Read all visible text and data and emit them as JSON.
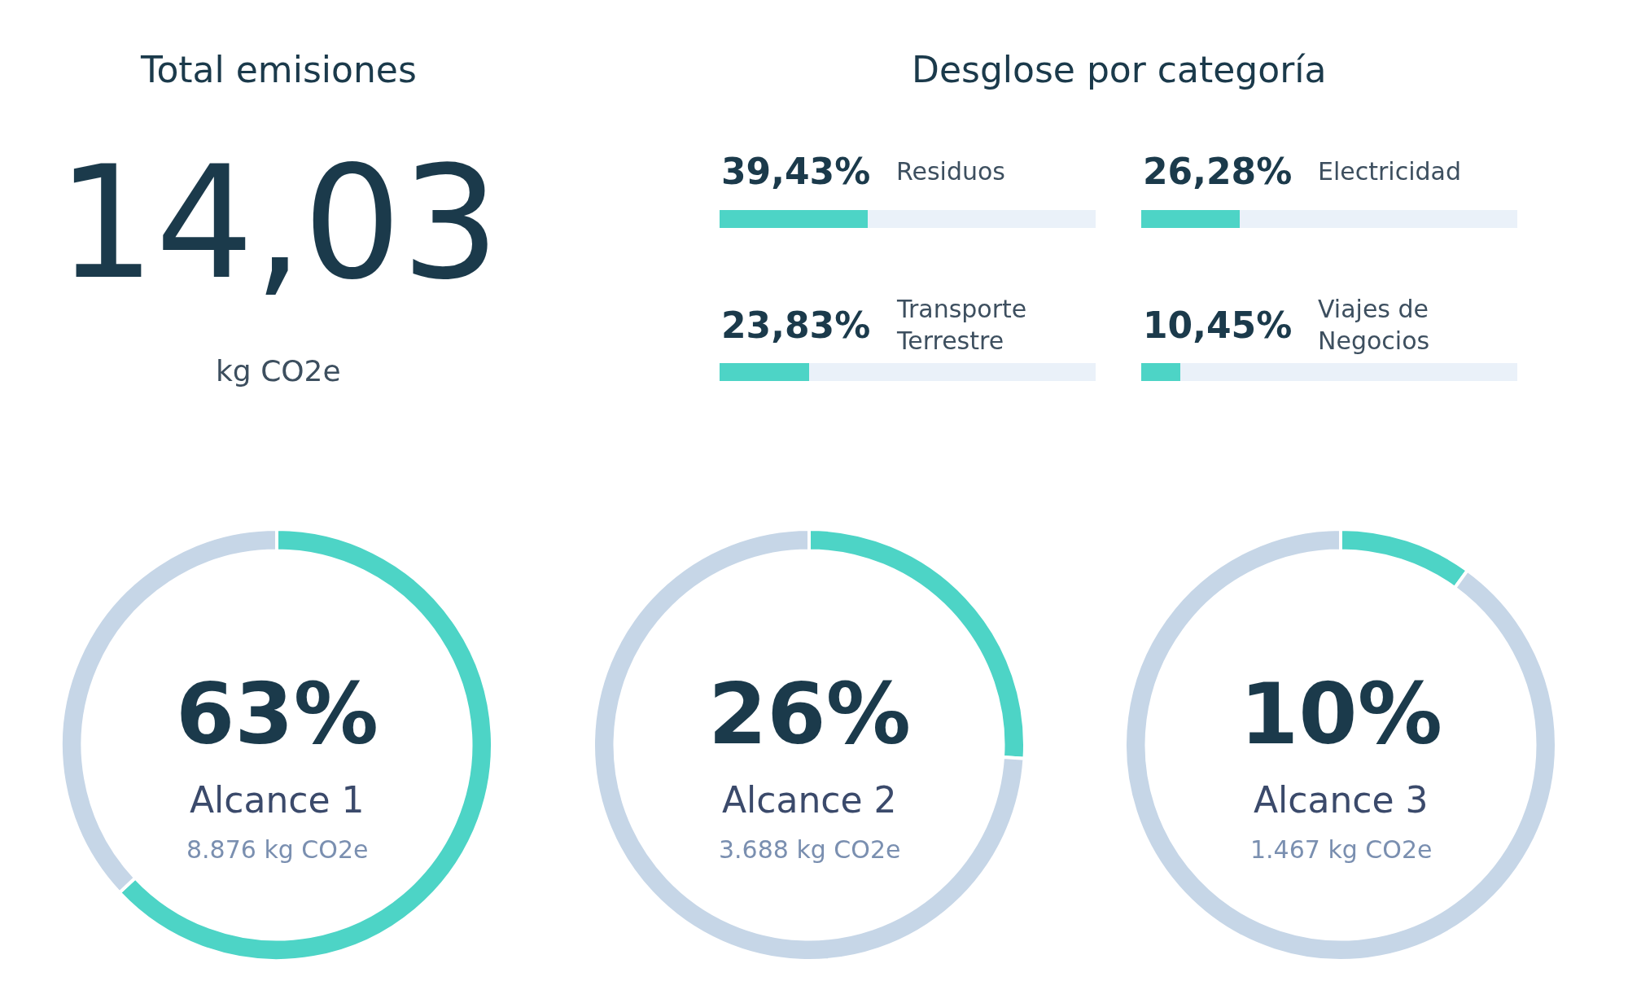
{
  "chart_data": [
    {
      "type": "other",
      "title": "Total emisiones",
      "annotations": [
        "14,03",
        "kg CO2e"
      ]
    },
    {
      "type": "bar",
      "orientation": "horizontal",
      "title": "Desglose por categoría",
      "categories": [
        "Residuos",
        "Transporte Terrestre"
      ],
      "values": [
        39.43,
        23.83
      ],
      "value_labels": [
        "39,43%",
        "23,83%"
      ],
      "color": "#4dd4c6",
      "xlim": [
        0,
        100
      ],
      "bands": [
        {
          "axis": "x",
          "from": 0,
          "to": 100,
          "color": "#eaf1f9"
        }
      ]
    },
    {
      "type": "bar",
      "orientation": "horizontal",
      "categories": [
        "Electricidad",
        "Viajes de Negocios"
      ],
      "values": [
        26.28,
        10.45
      ],
      "value_labels": [
        "26,28%",
        "10,45%"
      ],
      "color": "#4dd4c6",
      "xlim": [
        0,
        100
      ],
      "bands": [
        {
          "axis": "x",
          "from": 0,
          "to": 100,
          "color": "#eaf1f9"
        }
      ]
    },
    {
      "type": "donut",
      "categories": [
        "Alcance 1",
        null
      ],
      "values": [
        63,
        37
      ],
      "colors": [
        "#4dd4c6",
        "#c6d6e7"
      ],
      "value_labels": [
        "63%",
        null
      ],
      "annotations": [
        "8.876 kg CO2e"
      ]
    },
    {
      "type": "donut",
      "categories": [
        "Alcance 2",
        null
      ],
      "values": [
        26,
        74
      ],
      "colors": [
        "#4dd4c6",
        "#c6d6e7"
      ],
      "value_labels": [
        "26%",
        null
      ],
      "annotations": [
        "3.688 kg CO2e"
      ]
    },
    {
      "type": "donut",
      "categories": [
        "Alcance 3",
        null
      ],
      "values": [
        10,
        90
      ],
      "colors": [
        "#4dd4c6",
        "#c6d6e7"
      ],
      "value_labels": [
        "10%",
        null
      ],
      "annotations": [
        "1.467 kg CO2e"
      ]
    }
  ]
}
